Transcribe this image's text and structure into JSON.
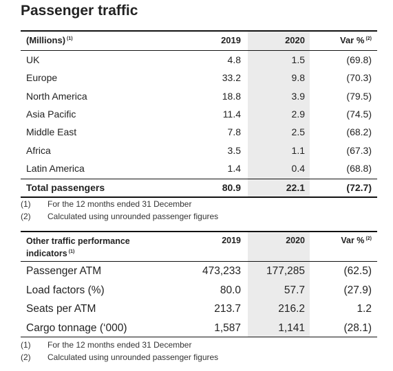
{
  "title": "Passenger traffic",
  "table1": {
    "columns": [
      {
        "label": "(Millions)",
        "note": "(1)"
      },
      {
        "label": "2019"
      },
      {
        "label": "2020"
      },
      {
        "label": "Var %",
        "note": "(2)"
      }
    ],
    "rows": [
      [
        "UK",
        "4.8",
        "1.5",
        "(69.8)"
      ],
      [
        "Europe",
        "33.2",
        "9.8",
        "(70.3)"
      ],
      [
        "North America",
        "18.8",
        "3.9",
        "(79.5)"
      ],
      [
        "Asia Pacific",
        "11.4",
        "2.9",
        "(74.5)"
      ],
      [
        "Middle East",
        "7.8",
        "2.5",
        "(68.2)"
      ],
      [
        "Africa",
        "3.5",
        "1.1",
        "(67.3)"
      ],
      [
        "Latin America",
        "1.4",
        "0.4",
        "(68.8)"
      ]
    ],
    "total": [
      "Total passengers",
      "80.9",
      "22.1",
      "(72.7)"
    ],
    "footnotes": [
      [
        "(1)",
        "For the 12 months ended 31 December"
      ],
      [
        "(2)",
        "Calculated using unrounded passenger figures"
      ]
    ]
  },
  "table2": {
    "columns": [
      {
        "label": "Other traffic performance indicators",
        "note": "(1)"
      },
      {
        "label": "2019"
      },
      {
        "label": "2020"
      },
      {
        "label": "Var %",
        "note": "(2)"
      }
    ],
    "rows": [
      [
        "Passenger ATM",
        "473,233",
        "177,285",
        "(62.5)"
      ],
      [
        "Load factors (%)",
        "80.0",
        "57.7",
        "(27.9)"
      ],
      [
        "Seats per ATM",
        "213.7",
        "216.2",
        "1.2"
      ],
      [
        "Cargo tonnage (‘000)",
        "1,587",
        "1,141",
        "(28.1)"
      ]
    ],
    "footnotes": [
      [
        "(1)",
        "For the 12 months ended 31 December"
      ],
      [
        "(2)",
        "Calculated using unrounded passenger figures"
      ]
    ]
  }
}
